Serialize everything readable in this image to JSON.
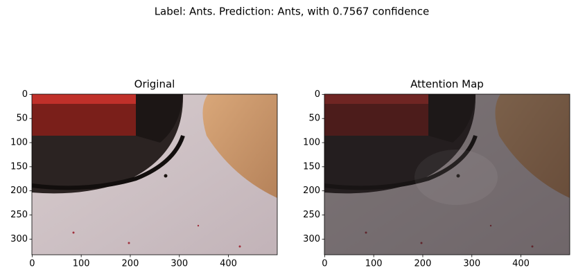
{
  "title": "Label: Ants. Prediction: Ants, with 0.7567 confidence",
  "chart_data": [
    {
      "type": "image",
      "title": "Original",
      "xlim": [
        -0.5,
        499.5
      ],
      "ylim": [
        332.5,
        -0.5
      ],
      "xticks": [
        0,
        100,
        200,
        300,
        400
      ],
      "yticks": [
        0,
        50,
        100,
        150,
        200,
        250,
        300
      ]
    },
    {
      "type": "image",
      "title": "Attention Map",
      "xlim": [
        -0.5,
        499.5
      ],
      "ylim": [
        332.5,
        -0.5
      ],
      "xticks": [
        0,
        100,
        200,
        300,
        400
      ],
      "yticks": [
        0,
        50,
        100,
        150,
        200,
        250,
        300
      ]
    }
  ]
}
